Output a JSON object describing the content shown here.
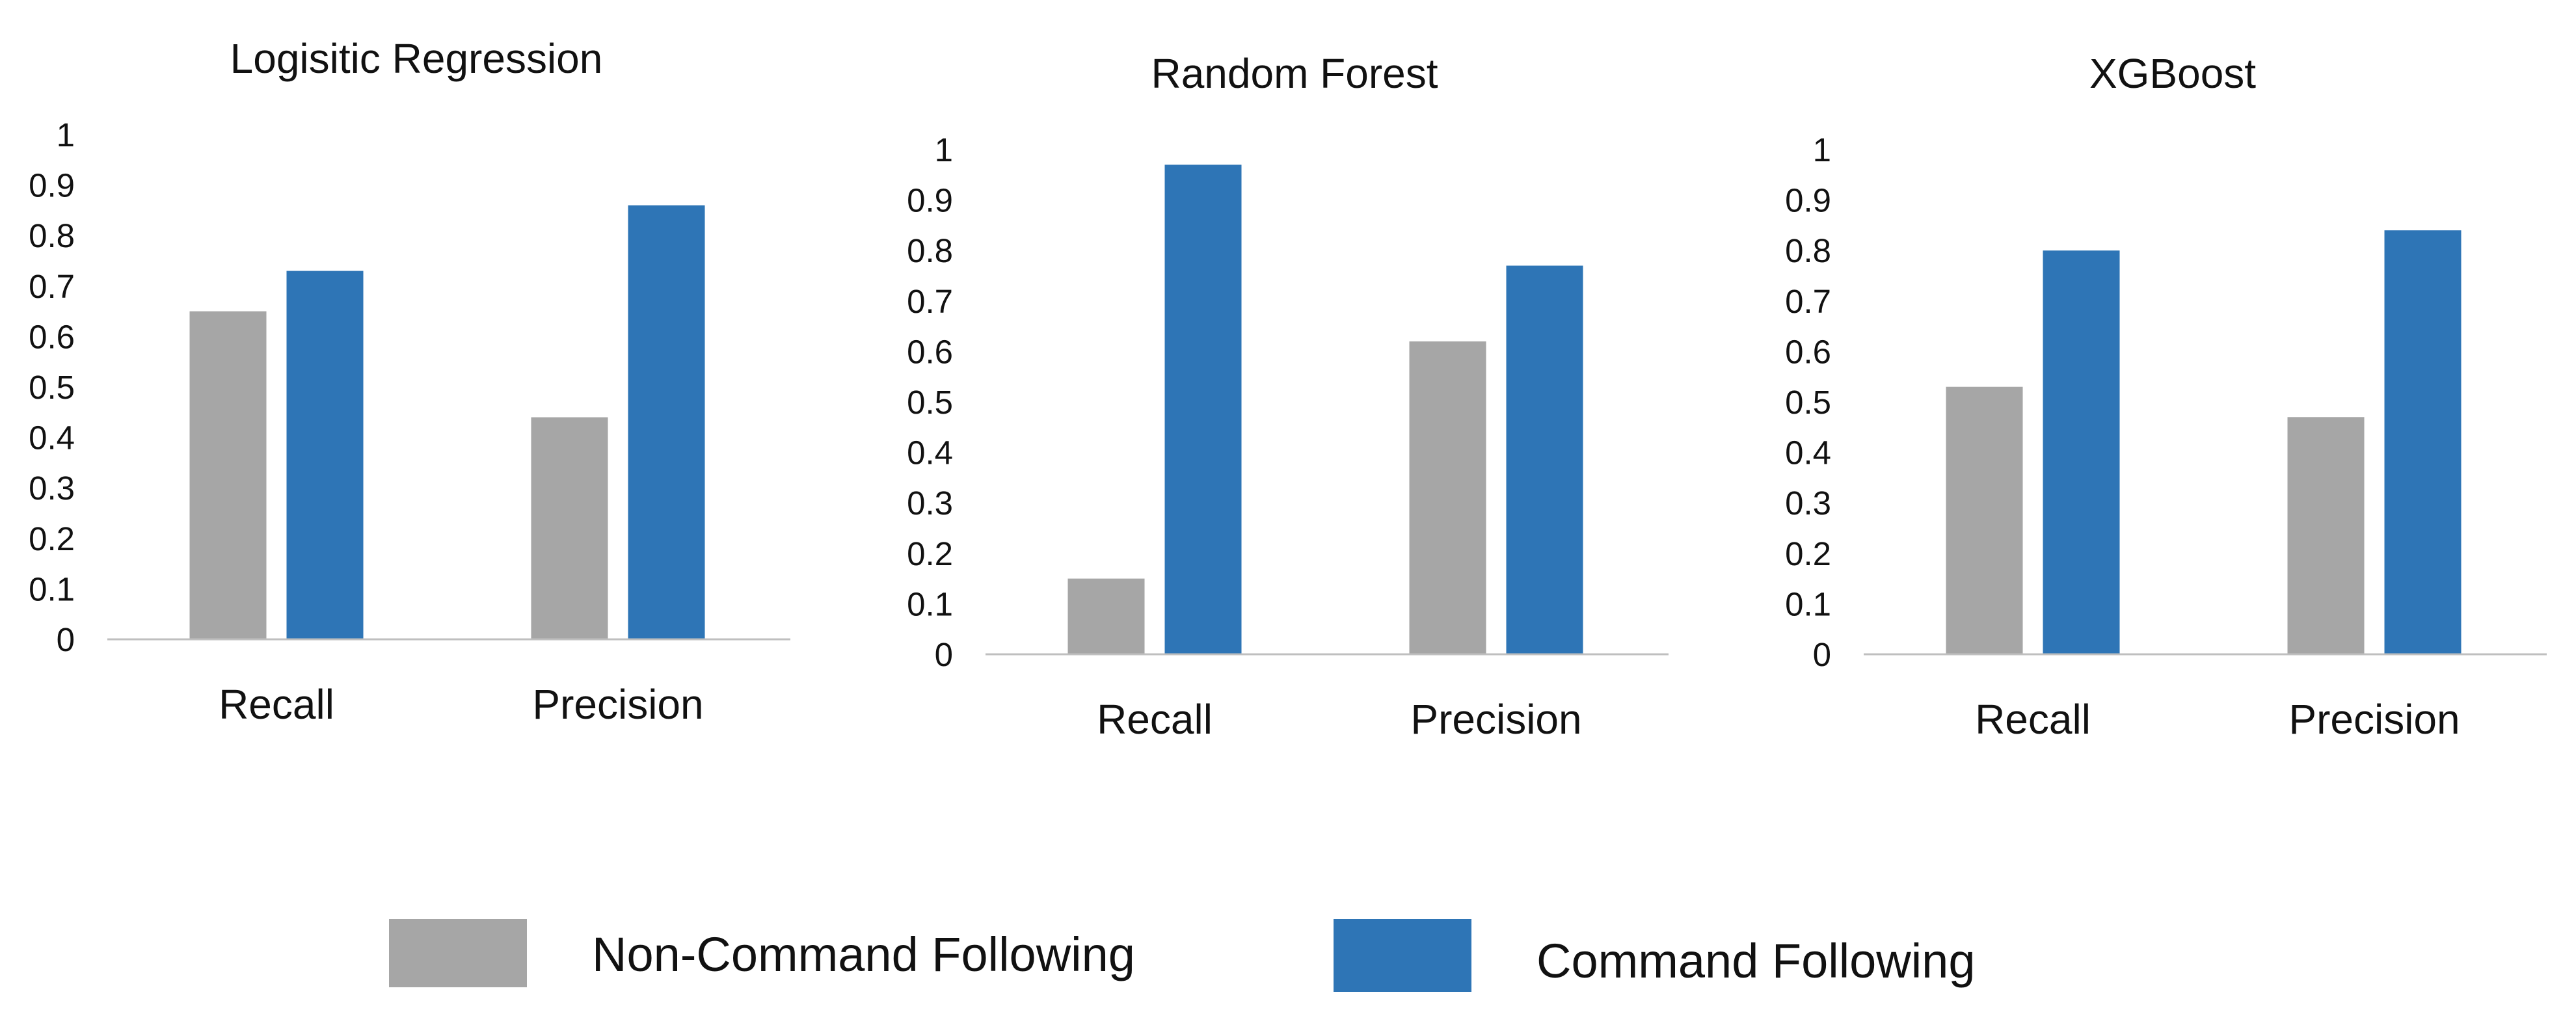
{
  "colors": {
    "non_command": "#a6a6a6",
    "command": "#2e75b6",
    "axis": "#bfbfbf"
  },
  "legend": [
    {
      "name": "Non-Command Following",
      "color": "#a6a6a6"
    },
    {
      "name": "Command Following",
      "color": "#2e75b6"
    }
  ],
  "chart_data": [
    {
      "type": "bar",
      "title": "Logisitic Regression",
      "categories": [
        "Recall",
        "Precision"
      ],
      "series": [
        {
          "name": "Non-Command Following",
          "values": [
            0.65,
            0.44
          ]
        },
        {
          "name": "Command Following",
          "values": [
            0.73,
            0.86
          ]
        }
      ],
      "ylim": [
        0,
        1
      ],
      "yticks": [
        "0",
        "0.1",
        "0.2",
        "0.3",
        "0.4",
        "0.5",
        "0.6",
        "0.7",
        "0.8",
        "0.9",
        "1"
      ],
      "grid": false,
      "legend": "bottom"
    },
    {
      "type": "bar",
      "title": "Random Forest",
      "categories": [
        "Recall",
        "Precision"
      ],
      "series": [
        {
          "name": "Non-Command Following",
          "values": [
            0.15,
            0.62
          ]
        },
        {
          "name": "Command Following",
          "values": [
            0.97,
            0.77
          ]
        }
      ],
      "ylim": [
        0,
        1
      ],
      "yticks": [
        "0",
        "0.1",
        "0.2",
        "0.3",
        "0.4",
        "0.5",
        "0.6",
        "0.7",
        "0.8",
        "0.9",
        "1"
      ],
      "grid": false,
      "legend": "bottom"
    },
    {
      "type": "bar",
      "title": "XGBoost",
      "categories": [
        "Recall",
        "Precision"
      ],
      "series": [
        {
          "name": "Non-Command Following",
          "values": [
            0.53,
            0.47
          ]
        },
        {
          "name": "Command Following",
          "values": [
            0.8,
            0.84
          ]
        }
      ],
      "ylim": [
        0,
        1
      ],
      "yticks": [
        "0",
        "0.1",
        "0.2",
        "0.3",
        "0.4",
        "0.5",
        "0.6",
        "0.7",
        "0.8",
        "0.9",
        "1"
      ],
      "grid": false,
      "legend": "bottom"
    }
  ]
}
